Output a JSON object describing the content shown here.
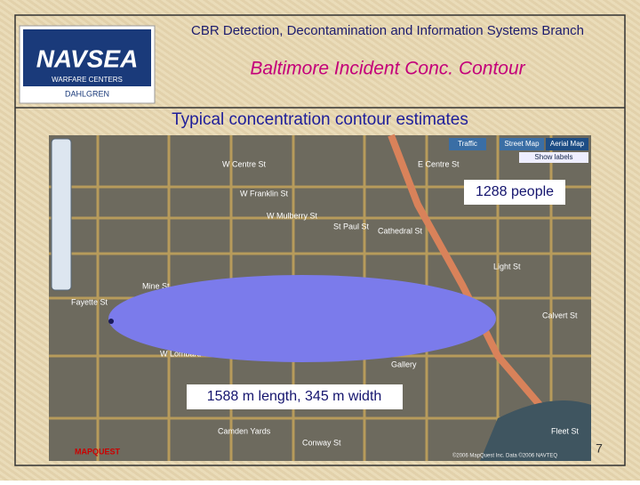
{
  "header": {
    "branch": "CBR Detection, Decontamination and Information Systems Branch",
    "title": "Baltimore Incident Conc. Contour",
    "logo": {
      "name": "NAVSEA",
      "line1": "WARFARE CENTERS",
      "line2": "DAHLGREN"
    }
  },
  "subtitle": "Typical concentration contour estimates",
  "map": {
    "controls": {
      "traffic": "Traffic",
      "street": "Street Map",
      "aerial": "Aerial Map",
      "labels": "Show labels"
    },
    "streets": [
      "W Centre St",
      "W Franklin St",
      "W Mulberry St",
      "Mine St",
      "Fayette St",
      "W Lombard St",
      "Cathedral St",
      "St Paul St",
      "Light St",
      "Calvert St",
      "E Centre St",
      "Fleet St",
      "Conway St",
      "Camden Yards",
      "Gallery"
    ],
    "brand": "MAPQUEST",
    "copyright": "©2006 MapQuest Inc. Data ©2006 NAVTEQ"
  },
  "annotations": {
    "population": "1288 people",
    "dimensions": "1588 m length, 345 m width"
  },
  "page_number": "7"
}
